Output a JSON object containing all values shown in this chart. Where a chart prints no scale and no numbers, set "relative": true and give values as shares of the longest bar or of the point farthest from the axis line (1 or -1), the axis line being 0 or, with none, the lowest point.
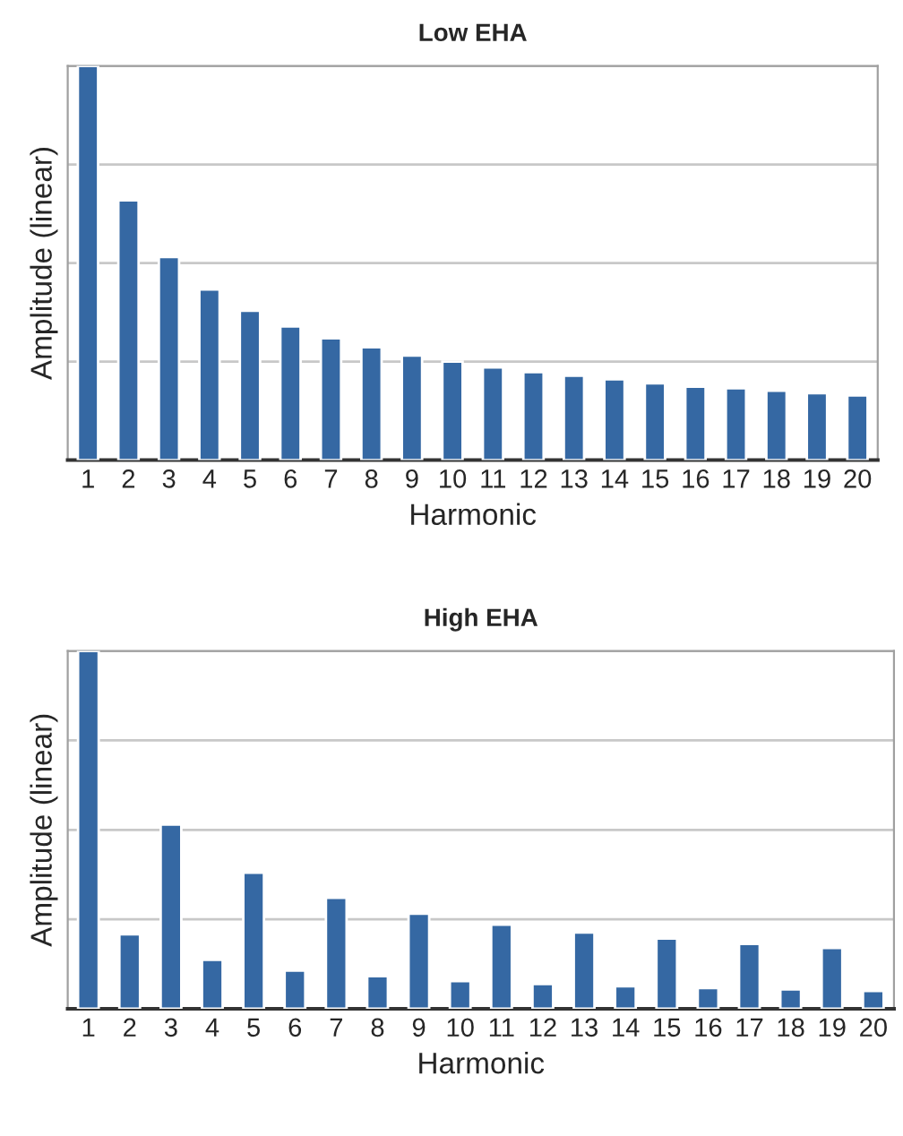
{
  "chart_data": [
    {
      "type": "bar",
      "title": "Low EHA",
      "xlabel": "Harmonic",
      "ylabel": "Amplitude (linear)",
      "relative": true,
      "grid": "y",
      "tick_labels": "x",
      "categories": [
        "1",
        "2",
        "3",
        "4",
        "5",
        "6",
        "7",
        "8",
        "9",
        "10",
        "11",
        "12",
        "13",
        "14",
        "15",
        "16",
        "17",
        "18",
        "19",
        "20"
      ],
      "series": [
        {
          "color": "#3568a3",
          "values": [
            1.0,
            0.659,
            0.515,
            0.433,
            0.379,
            0.339,
            0.309,
            0.286,
            0.265,
            0.25,
            0.235,
            0.223,
            0.214,
            0.205,
            0.195,
            0.186,
            0.182,
            0.176,
            0.17,
            0.164
          ]
        }
      ]
    },
    {
      "type": "bar",
      "title": "High EHA",
      "xlabel": "Harmonic",
      "ylabel": "Amplitude (linear)",
      "relative": true,
      "grid": "y",
      "tick_labels": "x",
      "categories": [
        "1",
        "2",
        "3",
        "4",
        "5",
        "6",
        "7",
        "8",
        "9",
        "10",
        "11",
        "12",
        "13",
        "14",
        "15",
        "16",
        "17",
        "18",
        "19",
        "20"
      ],
      "series": [
        {
          "color": "#3568a3",
          "values": [
            1.0,
            0.208,
            0.515,
            0.137,
            0.38,
            0.107,
            0.31,
            0.091,
            0.266,
            0.077,
            0.235,
            0.069,
            0.213,
            0.063,
            0.196,
            0.058,
            0.181,
            0.054,
            0.17,
            0.05
          ]
        }
      ]
    }
  ]
}
